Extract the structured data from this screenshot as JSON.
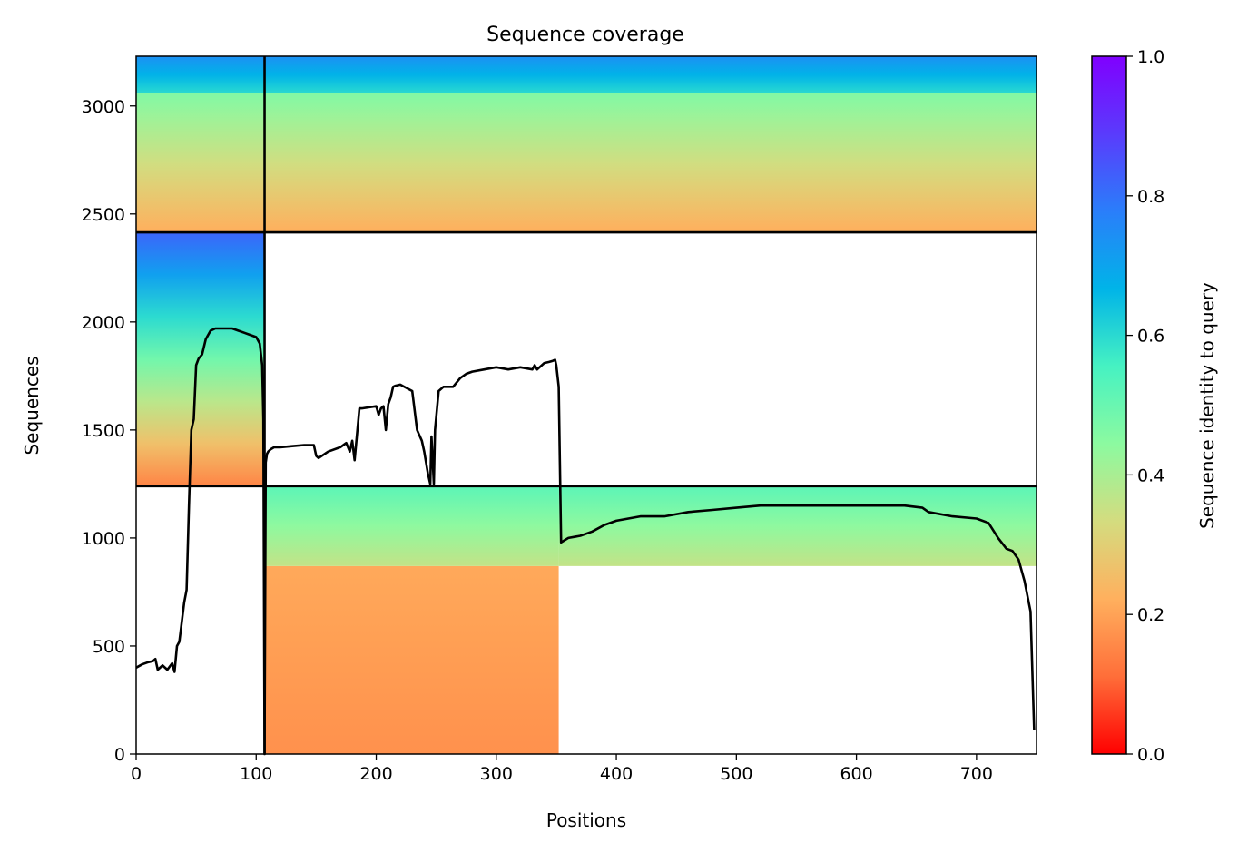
{
  "chart_data": {
    "type": "heatmap",
    "title": "Sequence coverage",
    "xlabel": "Positions",
    "ylabel": "Sequences",
    "xlim": [
      0,
      750
    ],
    "ylim": [
      0,
      3230
    ],
    "xticks": [
      0,
      100,
      200,
      300,
      400,
      500,
      600,
      700
    ],
    "yticks": [
      0,
      500,
      1000,
      1500,
      2000,
      2500,
      3000
    ],
    "grid": false,
    "colormap": "rainbow_r",
    "colorbar": {
      "label": "Sequence identity to query",
      "range": [
        0,
        1
      ],
      "ticks": [
        0.0,
        0.2,
        0.4,
        0.6,
        0.8,
        1.0
      ],
      "tick_labels": [
        "0.0",
        "0.2",
        "0.4",
        "0.6",
        "0.8",
        "1.0"
      ],
      "colors": [
        "#ff0000",
        "#ff6e39",
        "#ffb05e",
        "#d4dc7f",
        "#8cfaa0",
        "#46f2c2",
        "#00b4e8",
        "#2a7efa",
        "#5a3bfc",
        "#8000ff"
      ]
    },
    "separators": {
      "x": [
        107
      ],
      "y": [
        1240,
        2415
      ]
    },
    "blocks": [
      {
        "name": "block-1",
        "x": [
          107,
          352
        ],
        "y": [
          0,
          1240
        ],
        "bands": [
          {
            "y": [
              0,
              870
            ],
            "identity_bottom": 0.17,
            "identity_top": 0.21
          },
          {
            "y": [
              870,
              1240
            ],
            "identity_bottom": 0.36,
            "identity_top": 0.52
          }
        ]
      },
      {
        "name": "block-2",
        "x": [
          0,
          107
        ],
        "y": [
          1240,
          2415
        ],
        "bands": [
          {
            "y": [
              1240,
              2415
            ],
            "identity_bottom": 0.15,
            "identity_top": 0.82
          }
        ]
      },
      {
        "name": "block-3",
        "x": [
          0,
          750
        ],
        "y": [
          2415,
          3230
        ],
        "bands": [
          {
            "y": [
              2415,
              3060
            ],
            "identity_bottom": 0.22,
            "identity_top": 0.46
          },
          {
            "y": [
              3060,
              3230
            ],
            "identity_bottom": 0.6,
            "identity_top": 0.74
          }
        ]
      },
      {
        "name": "block-4",
        "x": [
          352,
          750
        ],
        "y": [
          870,
          1240
        ],
        "bands": [
          {
            "y": [
              870,
              1240
            ],
            "identity_bottom": 0.36,
            "identity_top": 0.52
          }
        ]
      }
    ],
    "coverage_line": {
      "color": "#000000",
      "x": [
        0,
        5,
        10,
        14,
        16,
        18,
        22,
        26,
        30,
        32,
        34,
        36,
        40,
        42,
        44,
        46,
        48,
        50,
        52,
        55,
        58,
        62,
        66,
        70,
        75,
        80,
        85,
        90,
        95,
        100,
        103,
        105,
        106,
        107,
        108,
        109,
        110,
        112,
        115,
        120,
        130,
        140,
        148,
        150,
        152,
        160,
        170,
        175,
        178,
        180,
        182,
        186,
        188,
        200,
        202,
        204,
        206,
        208,
        210,
        212,
        214,
        216,
        220,
        230,
        234,
        238,
        240,
        243,
        245,
        246,
        248,
        249,
        252,
        256,
        260,
        264,
        270,
        275,
        280,
        290,
        300,
        310,
        320,
        330,
        332,
        334,
        340,
        344,
        347,
        349,
        350,
        352,
        354,
        360,
        370,
        380,
        390,
        400,
        420,
        440,
        460,
        480,
        500,
        520,
        540,
        560,
        580,
        600,
        620,
        640,
        655,
        660,
        680,
        700,
        710,
        718,
        725,
        730,
        735,
        740,
        745,
        747,
        748
      ],
      "y": [
        400,
        415,
        425,
        430,
        440,
        390,
        410,
        390,
        420,
        380,
        500,
        520,
        700,
        760,
        1150,
        1500,
        1550,
        1800,
        1830,
        1850,
        1920,
        1960,
        1970,
        1970,
        1970,
        1970,
        1960,
        1950,
        1940,
        1930,
        1900,
        1800,
        1550,
        0,
        1350,
        1390,
        1400,
        1410,
        1420,
        1420,
        1425,
        1430,
        1430,
        1380,
        1370,
        1400,
        1420,
        1440,
        1400,
        1450,
        1360,
        1600,
        1600,
        1610,
        1570,
        1600,
        1610,
        1500,
        1620,
        1650,
        1700,
        1705,
        1710,
        1680,
        1500,
        1450,
        1400,
        1300,
        1250,
        1470,
        1250,
        1500,
        1680,
        1700,
        1700,
        1700,
        1740,
        1760,
        1770,
        1780,
        1790,
        1780,
        1790,
        1780,
        1800,
        1780,
        1810,
        1815,
        1820,
        1825,
        1800,
        1700,
        980,
        1000,
        1010,
        1030,
        1060,
        1080,
        1100,
        1100,
        1120,
        1130,
        1140,
        1150,
        1150,
        1150,
        1150,
        1150,
        1150,
        1150,
        1140,
        1120,
        1100,
        1090,
        1070,
        1000,
        950,
        940,
        900,
        800,
        660,
        300,
        110
      ]
    }
  }
}
